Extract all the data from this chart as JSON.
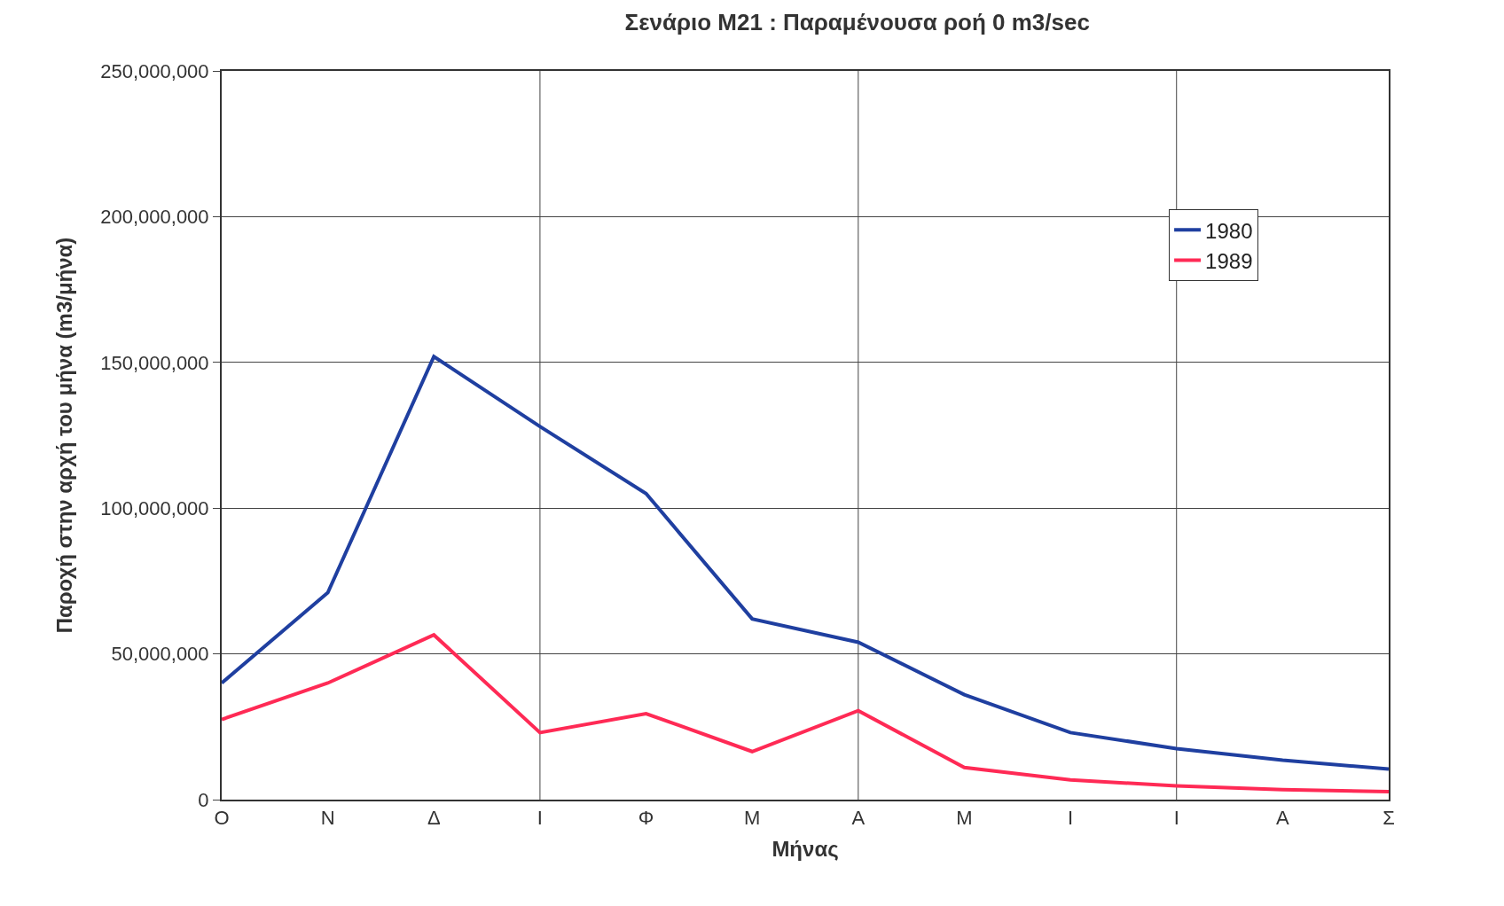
{
  "chart_data": {
    "type": "line",
    "title": "Σενάριο Μ21 : Παραμένουσα ροή 0 m3/sec",
    "xlabel": "Μήνας",
    "ylabel": "Παροχή στην αρχή του μήνα (m3/μήνα)",
    "categories": [
      "Ο",
      "Ν",
      "Δ",
      "Ι",
      "Φ",
      "Μ",
      "Α",
      "Μ",
      "Ι",
      "Ι",
      "Α",
      "Σ"
    ],
    "series": [
      {
        "name": "1980",
        "color": "#1f3fa0",
        "values": [
          40000000,
          71000000,
          152000000,
          128000000,
          105000000,
          62000000,
          54000000,
          36000000,
          23000000,
          17500000,
          13500000,
          10500000
        ]
      },
      {
        "name": "1989",
        "color": "#ff2a55",
        "values": [
          27500000,
          40000000,
          56500000,
          23000000,
          29500000,
          16500000,
          30500000,
          11000000,
          6800000,
          4700000,
          3400000,
          2700000
        ]
      }
    ],
    "ylim": [
      0,
      250000000
    ],
    "yticks": [
      {
        "value": 0,
        "label": "0"
      },
      {
        "value": 50000000,
        "label": "50,000,000"
      },
      {
        "value": 100000000,
        "label": "100,000,000"
      },
      {
        "value": 150000000,
        "label": "150,000,000"
      },
      {
        "value": 200000000,
        "label": "200,000,000"
      },
      {
        "value": 250000000,
        "label": "250,000,000"
      }
    ],
    "grid": true,
    "legend": "top right",
    "marker": "none",
    "line_style": "solid"
  }
}
